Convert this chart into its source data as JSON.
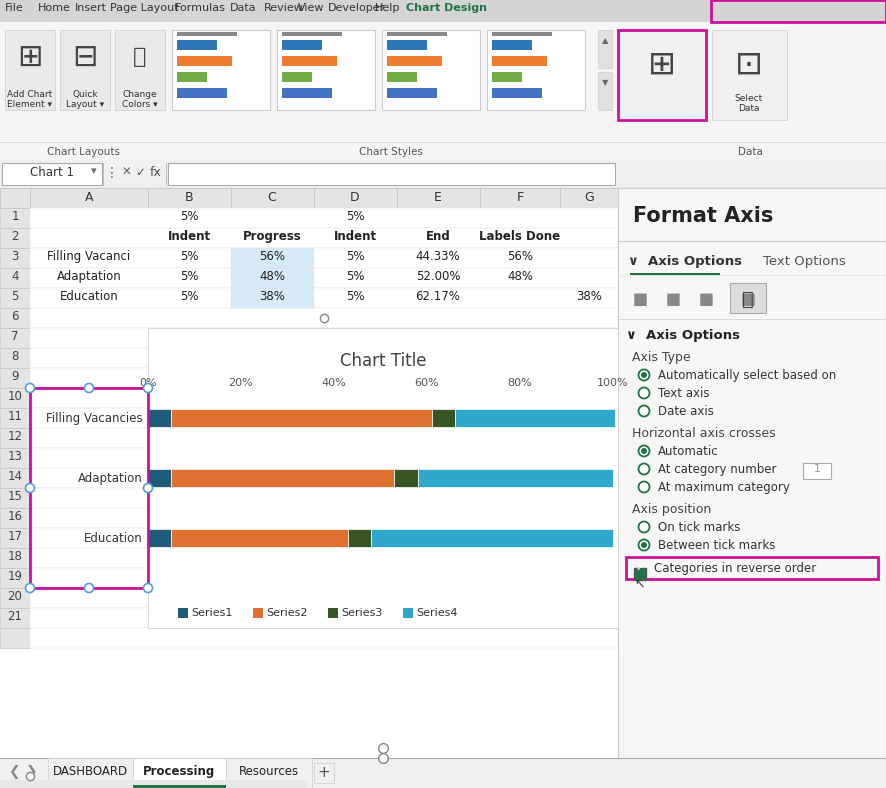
{
  "title": "Chart Title",
  "categories": [
    "Filling Vacancies",
    "Adaptation",
    "Education"
  ],
  "series1_color": "#1F5C7A",
  "series2_color": "#E07030",
  "series3_color": "#375623",
  "series4_color": "#2EA8CC",
  "series1_label": "Series1",
  "series2_label": "Series2",
  "series3_label": "Series3",
  "series4_label": "Series4",
  "s1_values": [
    0.05,
    0.05,
    0.05
  ],
  "s2_values": [
    0.56,
    0.48,
    0.38
  ],
  "s3_values": [
    0.05,
    0.05,
    0.05
  ],
  "s4_values": [
    0.3433,
    0.42,
    0.52
  ],
  "x_ticks": [
    "0%",
    "20%",
    "40%",
    "60%",
    "80%",
    "100%"
  ],
  "x_tick_vals": [
    0.0,
    0.2,
    0.4,
    0.6,
    0.8,
    1.0
  ],
  "highlight_pink": "#CC1199",
  "format_axis_title": "Format Axis",
  "axis_options_label": "Axis Options",
  "text_options_label": "Text Options",
  "axis_options_section": "Axis Options",
  "axis_type_label": "Axis Type",
  "auto_select_label": "Automatically select based on",
  "text_axis_label": "Text axis",
  "date_axis_label": "Date axis",
  "h_axis_crosses_label": "Horizontal axis crosses",
  "automatic_label": "Automatic",
  "at_cat_number_label": "At category number",
  "at_max_cat_label": "At maximum category",
  "axis_position_label": "Axis position",
  "on_tick_label": "On tick marks",
  "between_tick_label": "Between tick marks",
  "categories_reverse_label": "Categories in reverse order",
  "col_b_header": "Indent",
  "col_c_header": "Progress",
  "col_d_header": "Indent",
  "col_e_header": "End",
  "col_f_header": "Labels Done",
  "row1_b": "5%",
  "row1_d": "5%",
  "row3_a": "Filling Vacanci",
  "row3_b": "5%",
  "row3_c": "56%",
  "row3_d": "5%",
  "row3_e": "44.33%",
  "row3_f": "56%",
  "row4_a": "Adaptation",
  "row4_b": "5%",
  "row4_c": "48%",
  "row4_d": "5%",
  "row4_e": "52.00%",
  "row4_f": "48%",
  "row5_a": "Education",
  "row5_b": "5%",
  "row5_c": "38%",
  "row5_d": "5%",
  "row5_e": "62.17%",
  "row5_g": "38%",
  "ribbon_tabs": [
    "File",
    "Home",
    "Insert",
    "Page Layout",
    "Formulas",
    "Data",
    "Review",
    "View",
    "Developer",
    "Help",
    "Chart Design"
  ],
  "sheet_tabs": [
    "DASHBOARD",
    "Processing",
    "Resources"
  ],
  "green_color": "#217346",
  "radio_green": "#217346"
}
